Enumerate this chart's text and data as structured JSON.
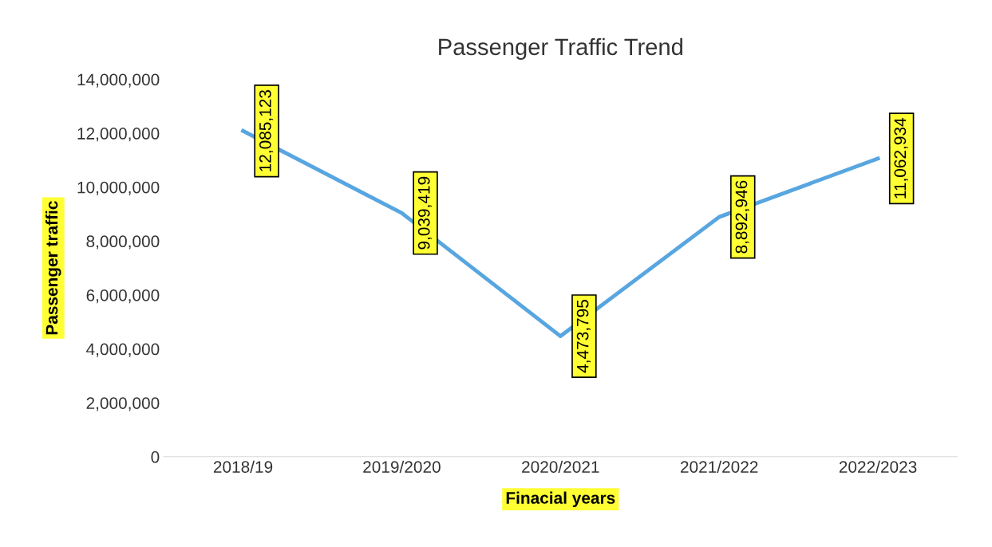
{
  "chart_data": {
    "type": "line",
    "title": "Passenger Traffic Trend",
    "xlabel": "Finacial years",
    "ylabel": "Passenger traffic",
    "categories": [
      "2018/19",
      "2019/2020",
      "2020/2021",
      "2021/2022",
      "2022/2023"
    ],
    "series": [
      {
        "color": "#58a6e0",
        "values": [
          12085123,
          9039419,
          4473795,
          8892946,
          11062934
        ]
      }
    ],
    "value_labels": [
      "12,085,123",
      "9,039,419",
      "4,473,795",
      "8,892,946",
      "11,062,934"
    ],
    "ylim": [
      0,
      14000000
    ],
    "yticks": [
      {
        "value": 0,
        "label": "0"
      },
      {
        "value": 2000000,
        "label": "2,000,000"
      },
      {
        "value": 4000000,
        "label": "4,000,000"
      },
      {
        "value": 6000000,
        "label": "6,000,000"
      },
      {
        "value": 8000000,
        "label": "8,000,000"
      },
      {
        "value": 10000000,
        "label": "10,000,000"
      },
      {
        "value": 12000000,
        "label": "12,000,000"
      },
      {
        "value": 14000000,
        "label": "14,000,000"
      }
    ],
    "grid": false,
    "legend": false,
    "line_style": "solid"
  }
}
